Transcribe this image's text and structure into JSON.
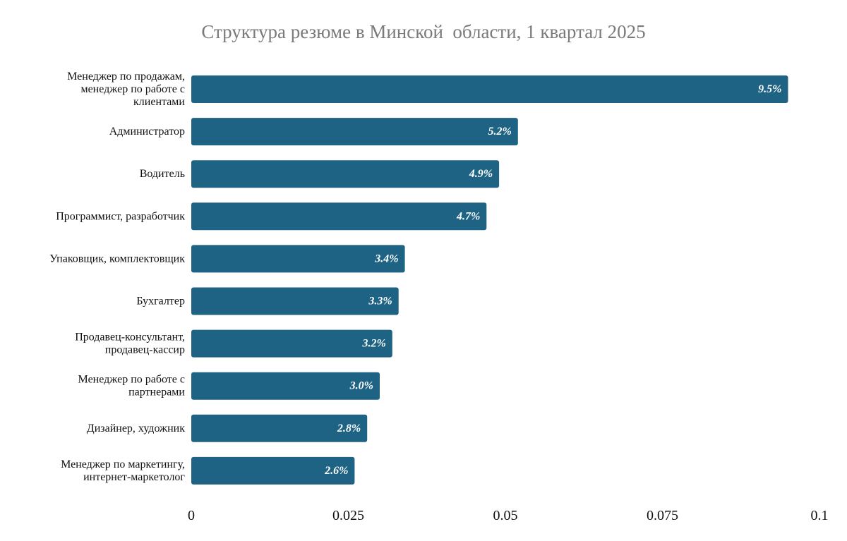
{
  "chart_data": {
    "type": "bar",
    "orientation": "horizontal",
    "title": "Структура резюме в Минской  области, 1 квартал 2025",
    "categories": [
      [
        "Менеджер по продажам,",
        "менеджер по работе с",
        "клиентами"
      ],
      [
        "Администратор"
      ],
      [
        "Водитель"
      ],
      [
        "Программист, разработчик"
      ],
      [
        "Упаковщик, комплектовщик"
      ],
      [
        "Бухгалтер"
      ],
      [
        "Продавец-консультант,",
        "продавец-кассир"
      ],
      [
        "Менеджер по работе с",
        "партнерами"
      ],
      [
        "Дизайнер, художник"
      ],
      [
        "Менеджер по маркетингу,",
        "интернет-маркетолог"
      ]
    ],
    "values": [
      0.095,
      0.052,
      0.049,
      0.047,
      0.034,
      0.033,
      0.032,
      0.03,
      0.028,
      0.026
    ],
    "data_labels": [
      "9.5%",
      "5.2%",
      "4.9%",
      "4.7%",
      "3.4%",
      "3.3%",
      "3.2%",
      "3.0%",
      "2.8%",
      "2.6%"
    ],
    "x_ticks": [
      0,
      0.025,
      0.05,
      0.075,
      0.1
    ],
    "x_tick_labels": [
      "0",
      "0.025",
      "0.05",
      "0.075",
      "0.1"
    ],
    "xlim": [
      0,
      0.1
    ],
    "grid": false,
    "bar_color": "#1e6384"
  }
}
